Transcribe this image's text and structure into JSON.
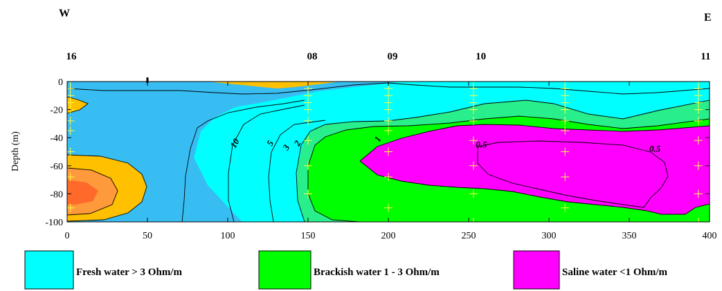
{
  "direction_west": "W",
  "direction_east": "E",
  "stations": [
    {
      "label": "16",
      "x": 0
    },
    {
      "label": "08",
      "x": 150
    },
    {
      "label": "09",
      "x": 200
    },
    {
      "label": "10",
      "x": 255
    },
    {
      "label": "11",
      "x": 395
    }
  ],
  "colors": {
    "fresh": "#37BDF2",
    "fresh_light": "#00FFFF",
    "brackish_light": "#29EE8C",
    "brackish": "#00FF00",
    "saline": "#FF00FF",
    "resistive_orange": "#FFC000",
    "resistive_dark": "#FF9A3C",
    "resistive_core": "#FF6A2A",
    "contour": "#000000",
    "measure_cross": "#FFFF44"
  },
  "chart_data": {
    "type": "heatmap",
    "title": "",
    "xlabel": "",
    "ylabel": "Depth (m)",
    "xlim": [
      0,
      400
    ],
    "ylim": [
      -100,
      0
    ],
    "x_ticks": [
      0,
      50,
      100,
      150,
      200,
      250,
      300,
      350,
      400
    ],
    "y_ticks": [
      0,
      -20,
      -40,
      -60,
      -80,
      -100
    ],
    "contour_labels": [
      {
        "text": "10",
        "x": 106,
        "y": -45
      },
      {
        "text": "5",
        "x": 128,
        "y": -45
      },
      {
        "text": "3",
        "x": 138,
        "y": -48
      },
      {
        "text": "2",
        "x": 145,
        "y": -45
      },
      {
        "text": "1",
        "x": 195,
        "y": -42
      },
      {
        "text": "0.5",
        "x": 258,
        "y": -47
      },
      {
        "text": "0.5",
        "x": 366,
        "y": -50
      }
    ],
    "measurement_profiles_x": [
      2,
      150,
      200,
      253,
      310,
      393
    ],
    "legend": [
      {
        "label": "Fresh water > 3 Ohm/m",
        "color": "#00FFFF"
      },
      {
        "label": "Brackish water 1 - 3 Ohm/m",
        "color": "#00FF00"
      },
      {
        "label": "Saline water <1 Ohm/m",
        "color": "#FF00FF"
      }
    ]
  }
}
